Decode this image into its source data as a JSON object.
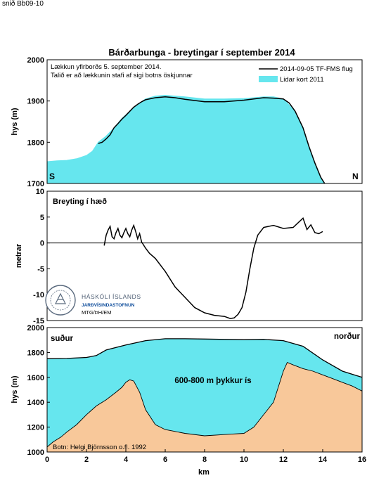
{
  "page": {
    "corner_label": "snið Bb09-10",
    "title": "Bárðarbunga - breytingar í september 2014"
  },
  "logo": {
    "line1": "HÁSKÓLI ÍSLANDS",
    "line2": "JARÐVÍSINDASTOFNUN",
    "line3": "MTG/ÞH/EM"
  },
  "chart_data": [
    {
      "type": "area",
      "panel": "top",
      "ylabel": "hys (m)",
      "ylim": [
        1700,
        2000
      ],
      "yticks": [
        1700,
        1800,
        1900,
        2000
      ],
      "xlim": [
        0,
        16
      ],
      "grid": false,
      "legend_position": "top-right",
      "annotation_line1": "Lækkun yfirborðs 5. september 2014.",
      "annotation_line2": "Talið er að lækkunin stafi af sigi botns öskjunnar",
      "corner_left": "S",
      "corner_right": "N",
      "series": [
        {
          "name": "Lidar kort 2011",
          "kind": "fill",
          "color": "#66e6ee",
          "x": [
            0,
            0.5,
            1,
            1.5,
            2,
            2.3,
            2.6,
            3,
            3.4,
            3.8,
            4.2,
            4.6,
            5,
            5.5,
            6,
            7,
            8,
            9,
            10,
            10.5,
            11,
            11.5,
            12,
            12.5,
            13,
            13.3,
            13.6,
            13.9,
            14.1
          ],
          "y": [
            1753,
            1755,
            1756,
            1760,
            1768,
            1778,
            1800,
            1815,
            1835,
            1858,
            1875,
            1892,
            1905,
            1912,
            1914,
            1910,
            1905,
            1905,
            1906,
            1908,
            1910,
            1910,
            1905,
            1880,
            1835,
            1790,
            1750,
            1715,
            1700
          ]
        },
        {
          "name": "2014-09-05 TF-FMS flug",
          "kind": "line",
          "color": "#000000",
          "x": [
            2.6,
            2.8,
            3.0,
            3.2,
            3.4,
            3.6,
            3.8,
            4.0,
            4.2,
            4.4,
            4.6,
            4.8,
            5.0,
            5.5,
            6.0,
            6.5,
            7,
            8,
            9,
            10,
            10.5,
            11,
            11.5,
            12,
            12.3,
            12.6,
            13,
            13.3,
            13.6,
            13.9,
            14.1
          ],
          "y": [
            1797,
            1800,
            1808,
            1818,
            1835,
            1845,
            1856,
            1865,
            1875,
            1885,
            1892,
            1898,
            1903,
            1908,
            1910,
            1908,
            1904,
            1898,
            1898,
            1902,
            1905,
            1908,
            1907,
            1905,
            1895,
            1875,
            1835,
            1790,
            1750,
            1715,
            1700
          ]
        }
      ]
    },
    {
      "type": "line",
      "panel": "middle",
      "ylabel": "metrar",
      "ylim": [
        -15,
        10
      ],
      "yticks": [
        -15,
        -10,
        -5,
        0,
        5,
        10
      ],
      "xlim": [
        0,
        16
      ],
      "grid": false,
      "annotation": "Breyting í hæð",
      "zero_line": true,
      "series": [
        {
          "name": "",
          "color": "#000000",
          "x": [
            2.9,
            3.0,
            3.1,
            3.2,
            3.3,
            3.4,
            3.5,
            3.6,
            3.7,
            3.8,
            3.9,
            4.0,
            4.1,
            4.2,
            4.3,
            4.4,
            4.5,
            4.6,
            4.7,
            4.8,
            5.0,
            5.2,
            5.5,
            6.0,
            6.5,
            7.0,
            7.5,
            8.0,
            8.5,
            9.0,
            9.3,
            9.5,
            9.7,
            9.9,
            10.1,
            10.3,
            10.5,
            10.7,
            11.0,
            11.5,
            12.0,
            12.5,
            13.0,
            13.2,
            13.4,
            13.6,
            13.8,
            14.0
          ],
          "y": [
            -0.5,
            1.5,
            2.5,
            3.2,
            1.2,
            0.8,
            2.0,
            2.8,
            1.5,
            1.0,
            2.0,
            2.8,
            1.8,
            1.2,
            2.5,
            3.4,
            2.2,
            0.8,
            1.8,
            0.2,
            -1.0,
            -2.0,
            -3.0,
            -5.5,
            -8.5,
            -10.5,
            -12.5,
            -13.5,
            -14.0,
            -14.2,
            -14.6,
            -14.5,
            -13.8,
            -12.5,
            -9.5,
            -5.0,
            -1.0,
            1.5,
            3.0,
            3.4,
            2.8,
            3.0,
            4.8,
            2.6,
            3.5,
            2.0,
            1.8,
            2.2
          ]
        }
      ]
    },
    {
      "type": "area",
      "panel": "bottom",
      "ylabel": "hys (m)",
      "xlabel": "km",
      "ylim": [
        1000,
        2000
      ],
      "yticks": [
        1000,
        1200,
        1400,
        1600,
        1800,
        2000
      ],
      "xlim": [
        0,
        16
      ],
      "xticks": [
        0,
        2,
        4,
        6,
        8,
        10,
        12,
        14,
        16
      ],
      "grid": false,
      "label_left": "suður",
      "label_right": "norður",
      "label_center": "600-800 m þykkur ís",
      "label_source": "Botn: Helgi Björnsson o.fl. 1992",
      "series": [
        {
          "name": "",
          "kind": "ice",
          "color": "#66e6ee",
          "x": [
            0,
            1,
            2,
            2.5,
            3,
            4,
            5,
            6,
            7,
            8,
            9,
            10,
            11,
            12,
            13,
            14,
            15,
            16
          ],
          "y": [
            1750,
            1752,
            1760,
            1775,
            1820,
            1860,
            1895,
            1910,
            1910,
            1908,
            1905,
            1903,
            1905,
            1895,
            1850,
            1740,
            1650,
            1600
          ]
        },
        {
          "name": "",
          "kind": "bed",
          "color": "#f8c89a",
          "x": [
            0,
            0.3,
            0.7,
            1.0,
            1.5,
            2.0,
            2.5,
            3.0,
            3.5,
            3.8,
            4.0,
            4.2,
            4.4,
            4.7,
            5.0,
            5.5,
            6.0,
            7.0,
            8.0,
            9.0,
            10.0,
            10.5,
            11.0,
            11.5,
            12.0,
            12.2,
            12.5,
            13.0,
            13.5,
            14.0,
            14.5,
            15.0,
            15.5,
            16.0
          ],
          "y": [
            1040,
            1080,
            1120,
            1160,
            1220,
            1300,
            1370,
            1420,
            1480,
            1520,
            1560,
            1580,
            1570,
            1480,
            1340,
            1220,
            1180,
            1150,
            1130,
            1140,
            1150,
            1200,
            1300,
            1400,
            1650,
            1720,
            1700,
            1670,
            1650,
            1620,
            1590,
            1560,
            1530,
            1490
          ]
        }
      ]
    }
  ]
}
